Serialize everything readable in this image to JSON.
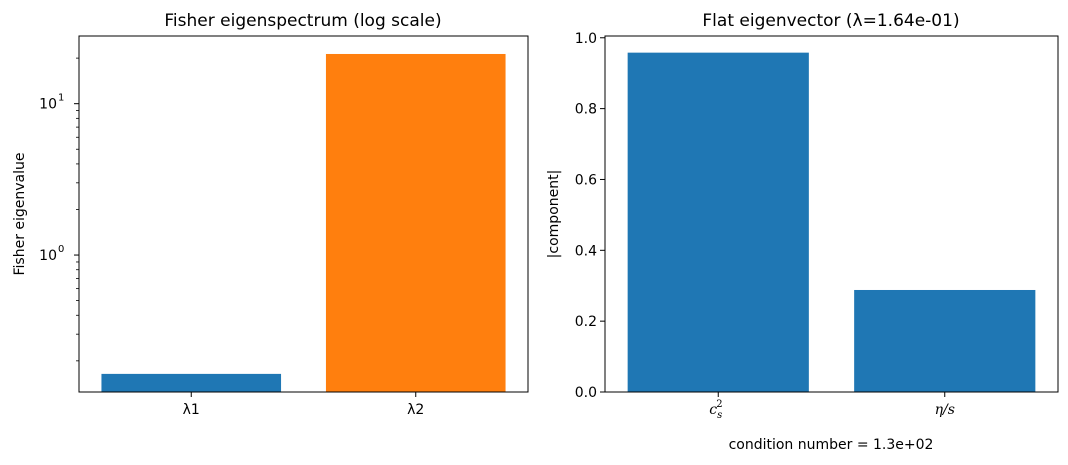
{
  "colors": {
    "blue": "#1f77b4",
    "orange": "#ff7f0e"
  },
  "chart_data": [
    {
      "type": "bar",
      "title": "Fisher eigenspectrum (log scale)",
      "xlabel": "",
      "ylabel": "Fisher eigenvalue",
      "yscale": "log",
      "ylim": [
        0.1245,
        28.0
      ],
      "ytick_labels": [
        "10^0",
        "10^1"
      ],
      "categories": [
        "λ1",
        "λ2"
      ],
      "values": [
        0.164,
        21.3
      ],
      "bar_colors": [
        "#1f77b4",
        "#ff7f0e"
      ],
      "grid": false,
      "legend": "none"
    },
    {
      "type": "bar",
      "title": "Flat eigenvector  (λ=1.64e-01)",
      "xlabel": "condition number = 1.3e+02",
      "ylabel": "|component|",
      "yscale": "linear",
      "ylim": [
        0,
        1.005
      ],
      "yticks": [
        0.0,
        0.2,
        0.4,
        0.6,
        0.8,
        1.0
      ],
      "ytick_labels": [
        "0.0",
        "0.2",
        "0.4",
        "0.6",
        "0.8",
        "1.0"
      ],
      "categories": [
        "c_s^2",
        "η/s"
      ],
      "values": [
        0.958,
        0.288
      ],
      "bar_colors": [
        "#1f77b4",
        "#1f77b4"
      ],
      "grid": false,
      "legend": "none"
    }
  ]
}
